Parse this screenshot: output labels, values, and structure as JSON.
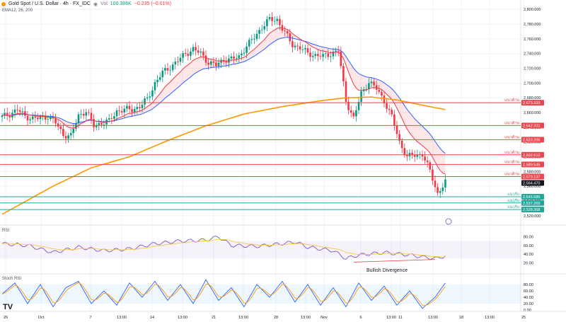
{
  "header": {
    "symbol": "Gold Spot / U.S. Dollar · 4h · FX_IDC",
    "vol": "Vol",
    "vol_value": "100.386K",
    "vol_change": "−0.235 (−0.01%)",
    "ema_label": "EMA12, 26, 200"
  },
  "panels": {
    "rsi_label": "RSI",
    "stoch_label": "Stoch RSI",
    "divergence_label": "Bullish Divergence"
  },
  "colors": {
    "up": "#089981",
    "down": "#f23645",
    "ema12": "#f23645",
    "ema26": "#2962ff",
    "ema200": "#ff9800",
    "resistance": "#e8474d",
    "support": "#26a69a",
    "rsi": "#7e57c2"
  },
  "price_axis": {
    "ticks": [
      "2,800.000",
      "2,780.000",
      "2,760.000",
      "2,740.000",
      "2,720.000",
      "2,700.000",
      "2,680.000",
      "2,660.000",
      "2,640.000",
      "2,620.000",
      "2,600.000",
      "2,580.000",
      "2,560.000",
      "2,540.000",
      "2,520.000"
    ]
  },
  "levels": [
    {
      "label": "แนวต้าน",
      "value": "2,673.333",
      "type": "resistance"
    },
    {
      "label": "แนวต้าน",
      "value": "2,642.331",
      "type": "resistance"
    },
    {
      "label": "แนวต้าน",
      "value": "2,623.205",
      "type": "resistance"
    },
    {
      "label": "แนวต้าน",
      "value": "2,602.612",
      "type": "resistance"
    },
    {
      "label": "แนวต้าน",
      "value": "2,589.545",
      "type": "resistance"
    },
    {
      "label": "แนวต้าน",
      "value": "2,573.137",
      "type": "resistance"
    },
    {
      "label": "",
      "value": "2,564.470",
      "type": "current"
    },
    {
      "label": "แนวรับ",
      "value": "2,545.685",
      "type": "support"
    },
    {
      "label": "แนวรับ",
      "value": "2,537.269",
      "type": "support"
    },
    {
      "label": "แนวรับ",
      "value": "2,528.368",
      "type": "support"
    }
  ],
  "rsi_axis": [
    "80.00",
    "60.00",
    "40.00",
    "20.00"
  ],
  "stoch_axis": [
    "80.00",
    "60.00",
    "40.00",
    "20.00",
    "0.00"
  ],
  "time_axis": [
    "26",
    "Oct",
    "7",
    "13:00",
    "14",
    "13:00",
    "21",
    "13:00",
    "28",
    "13:00",
    "Nov",
    "6",
    "13:00",
    "11",
    "13:00",
    "18",
    "13:00",
    "25"
  ],
  "chart_data": {
    "type": "candlestick",
    "price_range": [
      2515,
      2805
    ],
    "close_path": [
      [
        0,
        2654
      ],
      [
        3,
        2658
      ],
      [
        6,
        2664
      ],
      [
        9,
        2655
      ],
      [
        12,
        2652
      ],
      [
        15,
        2652
      ],
      [
        18,
        2655
      ],
      [
        21,
        2646
      ],
      [
        24,
        2630
      ],
      [
        27,
        2628
      ],
      [
        30,
        2656
      ],
      [
        33,
        2662
      ],
      [
        36,
        2642
      ],
      [
        39,
        2646
      ],
      [
        42,
        2648
      ],
      [
        45,
        2662
      ],
      [
        48,
        2664
      ],
      [
        51,
        2664
      ],
      [
        54,
        2668
      ],
      [
        57,
        2678
      ],
      [
        60,
        2700
      ],
      [
        63,
        2714
      ],
      [
        66,
        2722
      ],
      [
        69,
        2730
      ],
      [
        72,
        2740
      ],
      [
        75,
        2746
      ],
      [
        78,
        2740
      ],
      [
        81,
        2728
      ],
      [
        84,
        2724
      ],
      [
        87,
        2732
      ],
      [
        90,
        2732
      ],
      [
        93,
        2736
      ],
      [
        96,
        2750
      ],
      [
        99,
        2762
      ],
      [
        102,
        2776
      ],
      [
        105,
        2786
      ],
      [
        108,
        2786
      ],
      [
        111,
        2768
      ],
      [
        114,
        2752
      ],
      [
        117,
        2748
      ],
      [
        120,
        2740
      ],
      [
        123,
        2738
      ],
      [
        126,
        2736
      ],
      [
        129,
        2740
      ],
      [
        132,
        2744
      ],
      [
        135,
        2676
      ],
      [
        138,
        2652
      ],
      [
        141,
        2686
      ],
      [
        144,
        2702
      ],
      [
        147,
        2692
      ],
      [
        150,
        2676
      ],
      [
        153,
        2654
      ],
      [
        156,
        2620
      ],
      [
        159,
        2600
      ],
      [
        162,
        2602
      ],
      [
        165,
        2604
      ],
      [
        168,
        2580
      ],
      [
        171,
        2550
      ],
      [
        174,
        2566
      ]
    ],
    "ema200_path": [
      [
        0,
        2522
      ],
      [
        20,
        2560
      ],
      [
        35,
        2585
      ],
      [
        50,
        2600
      ],
      [
        65,
        2622
      ],
      [
        80,
        2642
      ],
      [
        95,
        2658
      ],
      [
        110,
        2668
      ],
      [
        125,
        2676
      ],
      [
        135,
        2680
      ],
      [
        145,
        2681
      ],
      [
        155,
        2677
      ],
      [
        165,
        2670
      ],
      [
        174,
        2664
      ]
    ],
    "levels": [
      2673.333,
      2642.331,
      2623.205,
      2602.612,
      2589.545,
      2573.137,
      2545.685,
      2537.269,
      2528.368
    ],
    "last_price": 2564.47,
    "rsi_path": [
      [
        0,
        64
      ],
      [
        10,
        60
      ],
      [
        20,
        44
      ],
      [
        30,
        56
      ],
      [
        40,
        48
      ],
      [
        50,
        52
      ],
      [
        60,
        64
      ],
      [
        70,
        70
      ],
      [
        80,
        72
      ],
      [
        85,
        80
      ],
      [
        90,
        60
      ],
      [
        100,
        58
      ],
      [
        110,
        64
      ],
      [
        115,
        68
      ],
      [
        120,
        56
      ],
      [
        130,
        48
      ],
      [
        135,
        30
      ],
      [
        140,
        38
      ],
      [
        150,
        44
      ],
      [
        160,
        38
      ],
      [
        170,
        30
      ],
      [
        174,
        36
      ]
    ],
    "stoch_path": [
      [
        0,
        50
      ],
      [
        5,
        85
      ],
      [
        10,
        20
      ],
      [
        15,
        80
      ],
      [
        20,
        10
      ],
      [
        25,
        70
      ],
      [
        30,
        90
      ],
      [
        35,
        20
      ],
      [
        40,
        60
      ],
      [
        45,
        15
      ],
      [
        50,
        85
      ],
      [
        55,
        40
      ],
      [
        60,
        90
      ],
      [
        65,
        30
      ],
      [
        70,
        80
      ],
      [
        75,
        20
      ],
      [
        80,
        95
      ],
      [
        85,
        30
      ],
      [
        90,
        70
      ],
      [
        95,
        10
      ],
      [
        100,
        80
      ],
      [
        105,
        40
      ],
      [
        110,
        90
      ],
      [
        115,
        25
      ],
      [
        120,
        80
      ],
      [
        125,
        15
      ],
      [
        130,
        70
      ],
      [
        135,
        10
      ],
      [
        140,
        85
      ],
      [
        145,
        30
      ],
      [
        150,
        75
      ],
      [
        155,
        15
      ],
      [
        160,
        60
      ],
      [
        165,
        5
      ],
      [
        170,
        40
      ],
      [
        174,
        85
      ]
    ]
  }
}
